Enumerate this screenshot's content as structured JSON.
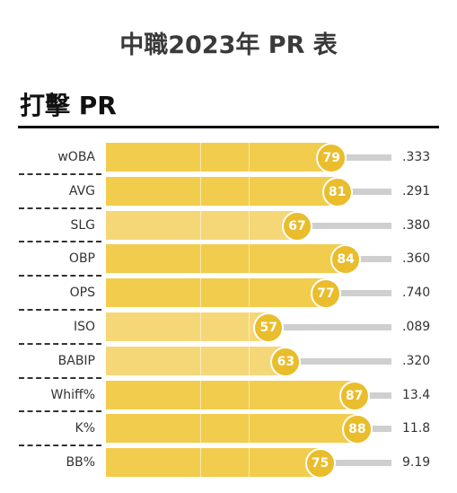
{
  "page_title": "中職2023年 PR 表",
  "section_title": "打擊 PR",
  "colors": {
    "bar_high": "#f2cc4d",
    "bar_low": "#f5d777",
    "badge": "#e9bd2b",
    "rest": "#cfcfcf"
  },
  "chart_data": {
    "type": "bar",
    "title": "",
    "xlim": [
      0,
      100
    ],
    "categories": [
      "wOBA",
      "AVG",
      "SLG",
      "OBP",
      "OPS",
      "ISO",
      "BABIP",
      "Whiff%",
      "K%",
      "BB%"
    ],
    "values": [
      79,
      81,
      67,
      84,
      77,
      57,
      63,
      87,
      88,
      75
    ],
    "stat_values": [
      ".333",
      ".291",
      ".380",
      ".360",
      ".740",
      ".089",
      ".320",
      "13.4",
      "11.8",
      "9.19"
    ]
  }
}
